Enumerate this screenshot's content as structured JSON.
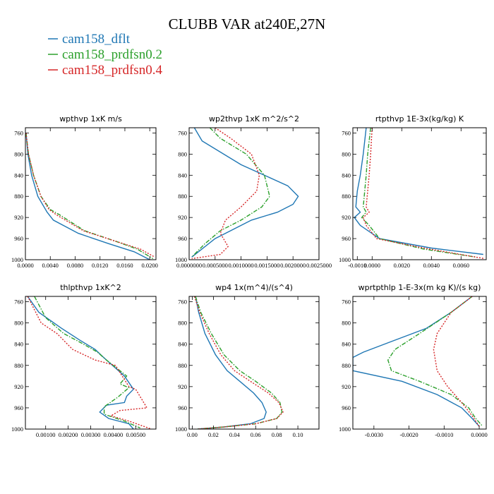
{
  "figure": {
    "title": "CLUBB VAR at240E,27N",
    "legend": [
      {
        "label": "cam158_dflt",
        "color": "#1f77b4",
        "dash": "solid"
      },
      {
        "label": "cam158_prdfsn0.2",
        "color": "#2ca02c",
        "dash": "dashdot"
      },
      {
        "label": "cam158_prdfsn0.4",
        "color": "#d62728",
        "dash": "dotted"
      }
    ]
  },
  "chart_data": [
    {
      "type": "line",
      "title": "wpthvp  1xK m/s",
      "xlim": [
        0,
        0.021
      ],
      "ylim": [
        1000,
        750
      ],
      "xticks": [
        0,
        0.004,
        0.008,
        0.012,
        0.016,
        0.02
      ],
      "xticklabels": [
        "0.0000",
        "0.0040",
        "0.0080",
        "0.0120",
        "0.0160",
        "0.0200"
      ],
      "yticks": [
        760,
        800,
        840,
        880,
        920,
        960,
        1000
      ],
      "yticklabels": [
        "760",
        "800",
        "840",
        "880",
        "920",
        "960",
        "1000"
      ],
      "series": [
        {
          "name": "cam158_dflt",
          "x": [
            0.0001,
            0.0004,
            0.001,
            0.002,
            0.0035,
            0.0045,
            0.0085,
            0.0135,
            0.0175,
            0.02
          ],
          "y": [
            760,
            800,
            840,
            880,
            910,
            925,
            950,
            970,
            985,
            1000
          ]
        },
        {
          "name": "cam158_prdfsn0.2",
          "x": [
            0.0001,
            0.0005,
            0.0013,
            0.0025,
            0.004,
            0.0055,
            0.0095,
            0.0145,
            0.018,
            0.0205
          ],
          "y": [
            760,
            800,
            840,
            880,
            905,
            915,
            945,
            965,
            980,
            998
          ]
        },
        {
          "name": "cam158_prdfsn0.4",
          "x": [
            0.0001,
            0.0005,
            0.0013,
            0.0025,
            0.0038,
            0.005,
            0.0093,
            0.0145,
            0.0185,
            0.0208
          ],
          "y": [
            760,
            800,
            840,
            880,
            905,
            915,
            945,
            965,
            980,
            995
          ]
        }
      ]
    },
    {
      "type": "line",
      "title": "wp2thvp  1xK m^2/s^2",
      "xlim": [
        0,
        0.0025
      ],
      "ylim": [
        1000,
        750
      ],
      "xticks": [
        0,
        0.0005,
        0.001,
        0.0015,
        0.002,
        0.0025
      ],
      "xticklabels": [
        "0.0000000",
        "0.0005000",
        "0.0010000",
        "0.0015000",
        "0.0020000",
        "0.0025000"
      ],
      "yticks": [
        760,
        800,
        840,
        880,
        920,
        960,
        1000
      ],
      "yticklabels": [
        "760",
        "800",
        "840",
        "880",
        "920",
        "960",
        "1000"
      ],
      "series": [
        {
          "name": "cam158_dflt",
          "x": [
            0.0001,
            0.00025,
            0.001,
            0.0019,
            0.0021,
            0.002,
            0.0017,
            0.0012,
            0.0005,
            5e-05
          ],
          "y": [
            750,
            775,
            820,
            860,
            880,
            895,
            910,
            925,
            960,
            995
          ]
        },
        {
          "name": "cam158_prdfsn0.2",
          "x": [
            0.0004,
            0.0006,
            0.0011,
            0.00145,
            0.00155,
            0.0014,
            0.001,
            0.0006,
            0.0003,
            5e-05
          ],
          "y": [
            750,
            770,
            800,
            840,
            880,
            900,
            925,
            945,
            970,
            995
          ]
        },
        {
          "name": "cam158_prdfsn0.4",
          "x": [
            0.0005,
            0.0008,
            0.0012,
            0.00135,
            0.0013,
            0.001,
            0.0007,
            0.0006,
            0.00075,
            0.0006,
            5e-05
          ],
          "y": [
            750,
            770,
            800,
            840,
            870,
            900,
            925,
            950,
            975,
            990,
            998
          ]
        }
      ]
    },
    {
      "type": "line",
      "title": "rtpthvp  1E-3x(kg/kg) K",
      "xlim": [
        -0.0013,
        0.0077
      ],
      "ylim": [
        1000,
        750
      ],
      "xticks": [
        -0.001,
        0,
        0.002,
        0.004,
        0.006
      ],
      "xticklabels": [
        "-0.0010",
        "0.0000",
        "0.0020",
        "0.0040",
        "0.0060"
      ],
      "yticks": [
        760,
        800,
        840,
        880,
        920,
        960,
        1000
      ],
      "yticklabels": [
        "760",
        "800",
        "840",
        "880",
        "920",
        "960",
        "1000"
      ],
      "series": [
        {
          "name": "cam158_dflt",
          "x": [
            -0.0004,
            -0.0006,
            -0.0008,
            -0.001,
            -0.0011,
            -0.0008,
            -0.0012,
            -0.0008,
            0.0005,
            0.004,
            0.0075
          ],
          "y": [
            750,
            800,
            840,
            870,
            900,
            910,
            920,
            935,
            960,
            978,
            990
          ]
        },
        {
          "name": "cam158_prdfsn0.2",
          "x": [
            -0.0001,
            -0.0003,
            -0.0004,
            -0.0005,
            -0.0006,
            -0.0004,
            -0.0007,
            -0.0002,
            0.0005,
            0.0035,
            0.007
          ],
          "y": [
            750,
            800,
            840,
            870,
            900,
            910,
            920,
            935,
            960,
            980,
            995
          ]
        },
        {
          "name": "cam158_prdfsn0.4",
          "x": [
            0,
            -0.0001,
            -0.0002,
            -0.0003,
            -0.0004,
            -0.0002,
            -0.0006,
            -0.0004,
            0.0003,
            0.0035,
            0.0076
          ],
          "y": [
            750,
            800,
            840,
            870,
            900,
            910,
            920,
            935,
            960,
            978,
            998
          ]
        }
      ]
    },
    {
      "type": "line",
      "title": "thlpthvp  1xK^2",
      "xlim": [
        0.0001,
        0.0059
      ],
      "ylim": [
        1000,
        750
      ],
      "xticks": [
        0.001,
        0.002,
        0.003,
        0.004,
        0.005
      ],
      "xticklabels": [
        "0.00100",
        "0.00200",
        "0.00300",
        "0.00400",
        "0.00500"
      ],
      "yticks": [
        760,
        800,
        840,
        880,
        920,
        960,
        1000
      ],
      "yticklabels": [
        "760",
        "800",
        "840",
        "880",
        "920",
        "960",
        "1000"
      ],
      "series": [
        {
          "name": "cam158_dflt",
          "x": [
            0.0002,
            0.0007,
            0.0017,
            0.0025,
            0.0032,
            0.0036,
            0.0045,
            0.0049,
            0.0046,
            0.0045,
            0.0037,
            0.0034,
            0.0038,
            0.0047,
            0.0049
          ],
          "y": [
            750,
            780,
            810,
            832,
            850,
            866,
            900,
            925,
            938,
            950,
            955,
            968,
            980,
            990,
            1000
          ]
        },
        {
          "name": "cam158_prdfsn0.2",
          "x": [
            0.0005,
            0.001,
            0.0018,
            0.0026,
            0.0033,
            0.0037,
            0.0046,
            0.0043,
            0.0047,
            0.0042,
            0.0036,
            0.0036,
            0.0045,
            0.0052
          ],
          "y": [
            750,
            790,
            820,
            838,
            855,
            870,
            900,
            915,
            922,
            940,
            958,
            972,
            985,
            998
          ]
        },
        {
          "name": "cam158_prdfsn0.4",
          "x": [
            0.0002,
            0.0008,
            0.0015,
            0.0022,
            0.0032,
            0.0041,
            0.0047,
            0.005,
            0.0055,
            0.0043,
            0.0039,
            0.0047,
            0.0057
          ],
          "y": [
            750,
            800,
            820,
            850,
            870,
            880,
            920,
            925,
            960,
            965,
            975,
            985,
            1000
          ]
        }
      ]
    },
    {
      "type": "line",
      "title": "wp4  1x(m^4)/(s^4)",
      "xlim": [
        -0.003,
        0.12
      ],
      "ylim": [
        1000,
        750
      ],
      "xticks": [
        0,
        0.02,
        0.04,
        0.06,
        0.08,
        0.1
      ],
      "xticklabels": [
        "0.00",
        "0.02",
        "0.04",
        "0.06",
        "0.08",
        "0.10"
      ],
      "yticks": [
        760,
        800,
        840,
        880,
        920,
        960,
        1000
      ],
      "yticklabels": [
        "760",
        "800",
        "840",
        "880",
        "920",
        "960",
        "1000"
      ],
      "series": [
        {
          "name": "cam158_dflt",
          "x": [
            0.003,
            0.006,
            0.012,
            0.022,
            0.033,
            0.045,
            0.058,
            0.066,
            0.07,
            0.068,
            0.055,
            0.03,
            0.005
          ],
          "y": [
            750,
            780,
            820,
            860,
            890,
            910,
            932,
            950,
            968,
            980,
            990,
            996,
            1000
          ]
        },
        {
          "name": "cam158_prdfsn0.2",
          "x": [
            0.003,
            0.008,
            0.018,
            0.03,
            0.045,
            0.06,
            0.075,
            0.083,
            0.085,
            0.08,
            0.06,
            0.03,
            0.005
          ],
          "y": [
            750,
            780,
            820,
            860,
            890,
            910,
            932,
            950,
            968,
            980,
            990,
            996,
            1000
          ]
        },
        {
          "name": "cam158_prdfsn0.4",
          "x": [
            0.002,
            0.007,
            0.016,
            0.027,
            0.04,
            0.055,
            0.072,
            0.082,
            0.086,
            0.08,
            0.06,
            0.03,
            0.005
          ],
          "y": [
            750,
            780,
            820,
            860,
            890,
            910,
            932,
            950,
            968,
            980,
            990,
            996,
            1000
          ]
        }
      ]
    },
    {
      "type": "line",
      "title": "wprtpthlp  1-E-3x(m kg K)/(s kg)",
      "xlim": [
        -0.0036,
        0.0002
      ],
      "ylim": [
        1000,
        750
      ],
      "xticks": [
        -0.003,
        -0.002,
        -0.001,
        0
      ],
      "xticklabels": [
        "-0.0030",
        "-0.0020",
        "-0.0010",
        "0.0000"
      ],
      "yticks": [
        760,
        800,
        840,
        880,
        920,
        960,
        1000
      ],
      "yticklabels": [
        "760",
        "800",
        "840",
        "880",
        "920",
        "960",
        "1000"
      ],
      "series": [
        {
          "name": "cam158_dflt",
          "x": [
            -0.0002,
            -0.0008,
            -0.0015,
            -0.0025,
            -0.0033,
            -0.0036,
            -0.0036,
            -0.0022,
            -0.0012,
            -0.0005,
            -0.0002,
            0
          ],
          "y": [
            750,
            780,
            810,
            835,
            855,
            865,
            890,
            910,
            935,
            960,
            980,
            995
          ]
        },
        {
          "name": "cam158_prdfsn0.2",
          "x": [
            -0.0002,
            -0.0008,
            -0.0017,
            -0.0024,
            -0.0026,
            -0.0025,
            -0.0017,
            -0.0008,
            -0.0003,
            -0.0001,
            0.0001
          ],
          "y": [
            750,
            780,
            820,
            850,
            870,
            890,
            910,
            935,
            960,
            980,
            995
          ]
        },
        {
          "name": "cam158_prdfsn0.4",
          "x": [
            -0.0002,
            -0.0008,
            -0.0012,
            -0.0013,
            -0.0012,
            -0.0009,
            -0.0005,
            -0.0002,
            0
          ],
          "y": [
            750,
            780,
            820,
            850,
            890,
            920,
            950,
            975,
            995
          ]
        }
      ]
    }
  ]
}
